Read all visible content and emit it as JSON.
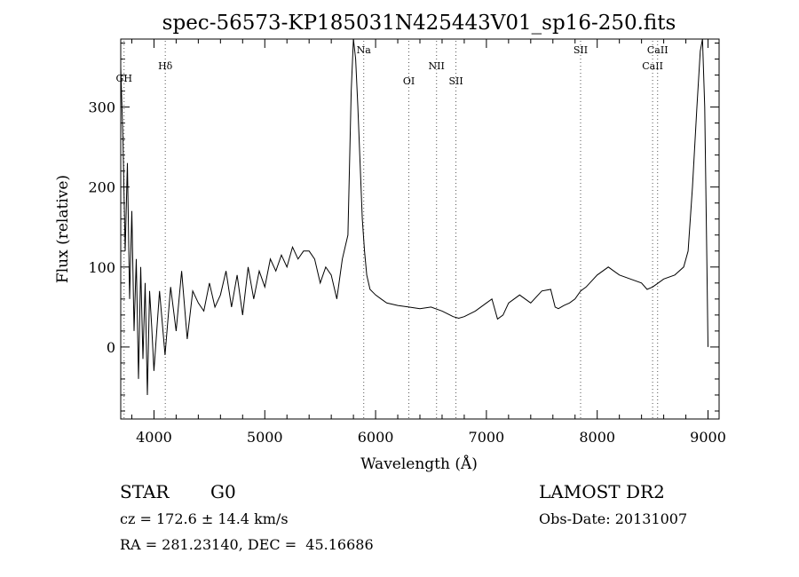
{
  "chart_data": {
    "type": "line",
    "title": "spec-56573-KP185031N425443V01_sp16-250.fits",
    "xlabel": "Wavelength (Å)",
    "ylabel": "Flux (relative)",
    "xlim": [
      3700,
      9100
    ],
    "ylim": [
      -90,
      385
    ],
    "xticks": [
      4000,
      5000,
      6000,
      7000,
      8000,
      9000
    ],
    "yticks": [
      0,
      100,
      200,
      300
    ],
    "grid": false,
    "series": [
      {
        "x": [
          3700,
          3720,
          3740,
          3760,
          3780,
          3800,
          3820,
          3840,
          3860,
          3880,
          3900,
          3920,
          3940,
          3960,
          3980,
          4000,
          4050,
          4100,
          4150,
          4200,
          4250,
          4300,
          4350,
          4400,
          4450,
          4500,
          4550,
          4600,
          4650,
          4700,
          4750,
          4800,
          4850,
          4900,
          4950,
          5000,
          5050,
          5100,
          5150,
          5200,
          5250,
          5300,
          5350,
          5400,
          5450,
          5500,
          5550,
          5600,
          5650,
          5700,
          5750,
          5780,
          5800,
          5820,
          5840,
          5860,
          5880,
          5900,
          5920,
          5950,
          6000,
          6050,
          6100,
          6200,
          6300,
          6400,
          6500,
          6600,
          6700,
          6750,
          6800,
          6900,
          7000,
          7050,
          7100,
          7150,
          7200,
          7300,
          7400,
          7500,
          7580,
          7620,
          7650,
          7700,
          7750,
          7800,
          7850,
          7900,
          8000,
          8100,
          8150,
          8200,
          8300,
          8400,
          8450,
          8500,
          8550,
          8600,
          8700,
          8780,
          8820,
          8860,
          8900,
          8930,
          8950,
          8970,
          8990,
          9000
        ],
        "y": [
          350,
          260,
          120,
          230,
          60,
          170,
          20,
          110,
          -40,
          100,
          -15,
          80,
          -60,
          70,
          25,
          -30,
          70,
          -10,
          75,
          20,
          95,
          10,
          70,
          55,
          45,
          80,
          50,
          65,
          95,
          50,
          90,
          40,
          100,
          60,
          95,
          75,
          110,
          95,
          115,
          100,
          125,
          110,
          120,
          120,
          110,
          80,
          100,
          90,
          60,
          110,
          140,
          320,
          385,
          360,
          300,
          230,
          160,
          120,
          90,
          72,
          65,
          60,
          55,
          52,
          50,
          48,
          50,
          45,
          38,
          36,
          38,
          45,
          55,
          60,
          35,
          40,
          55,
          65,
          55,
          70,
          72,
          50,
          48,
          52,
          55,
          60,
          70,
          75,
          90,
          100,
          95,
          90,
          85,
          80,
          72,
          75,
          80,
          85,
          90,
          100,
          120,
          200,
          300,
          370,
          385,
          300,
          100,
          0
        ]
      }
    ],
    "annotations": [
      {
        "label": "GH",
        "x": 3730
      },
      {
        "label": "Hδ",
        "x": 4102
      },
      {
        "label": "Na",
        "x": 5893
      },
      {
        "label": "OI",
        "x": 6300
      },
      {
        "label": "NII",
        "x": 6550
      },
      {
        "label": "SII",
        "x": 6725
      },
      {
        "label": "SII",
        "x": 7850
      },
      {
        "label": "CaII",
        "x": 8500
      },
      {
        "label": "CaII",
        "x": 8545
      }
    ]
  },
  "info": {
    "class_label": "STAR",
    "subclass_label": "G0",
    "cz_text": "cz = 172.6 ± 14.4 km/s",
    "coords_text": "RA = 281.23140, DEC =  45.16686",
    "survey_label": "LAMOST DR2",
    "obs_date_text": "Obs-Date: 20131007"
  }
}
